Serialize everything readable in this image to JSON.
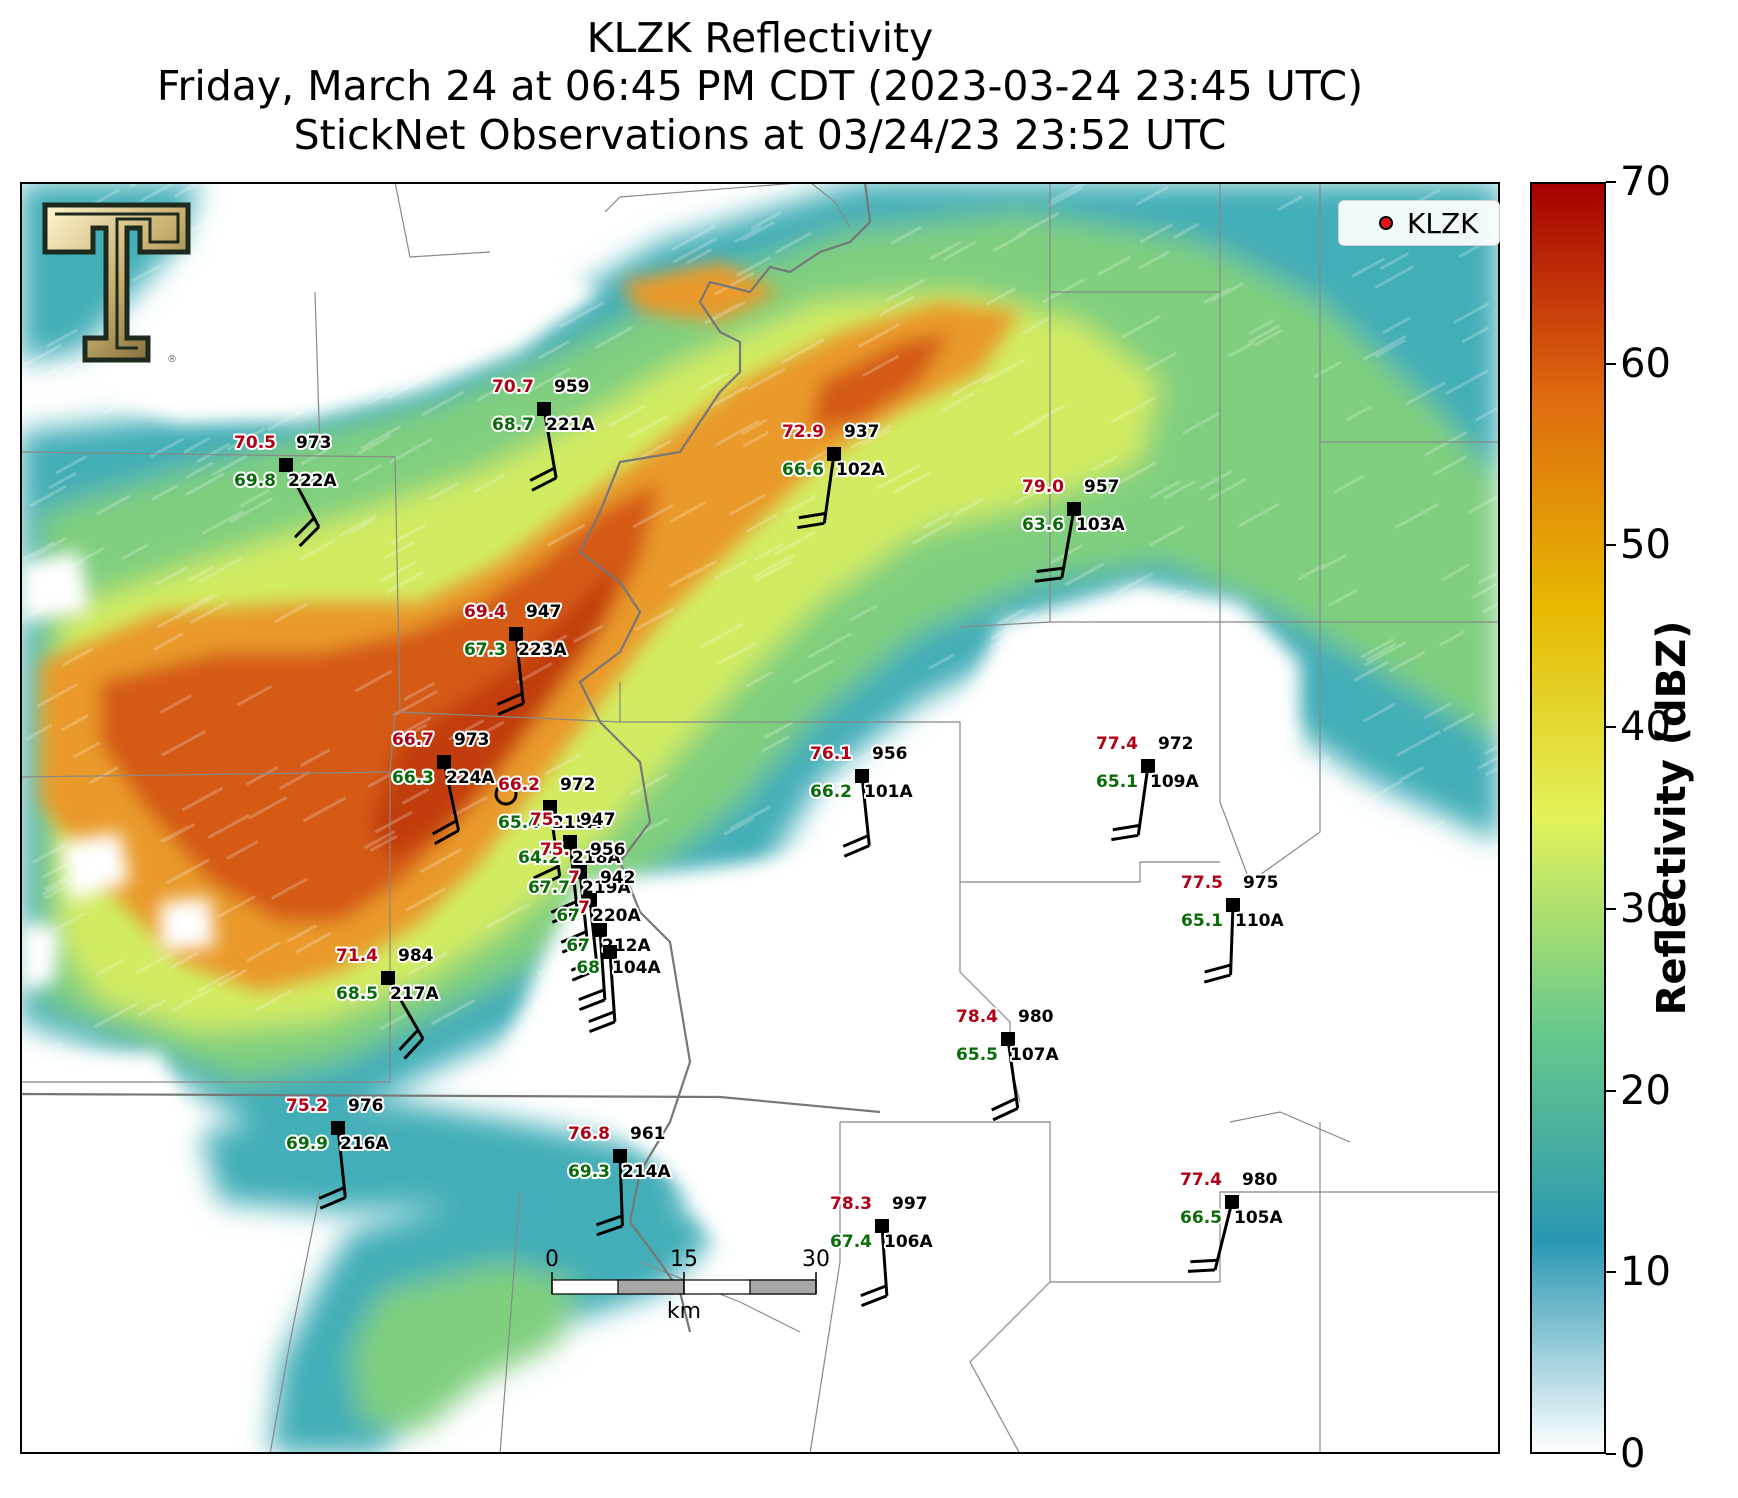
{
  "title": {
    "line1": "KLZK Reflectivity",
    "line2": "Friday, March 24 at 06:45 PM CDT (2023-03-24 23:45 UTC)",
    "line3": "StickNet Observations at 03/24/23 23:52 UTC"
  },
  "legend": {
    "label": "KLZK",
    "color": "#e8141a"
  },
  "colorbar": {
    "label": "Reflectivity (dBZ)",
    "min": 0,
    "max": 70,
    "ticks": [
      "0",
      "10",
      "20",
      "30",
      "40",
      "50",
      "60",
      "70"
    ],
    "colors": [
      "#ffffff",
      "#2a97b2",
      "#68c98a",
      "#e2f25a",
      "#e6b800",
      "#de6a10",
      "#a50000"
    ]
  },
  "scale_bar": {
    "ticks": [
      "0",
      "15",
      "30"
    ],
    "unit": "km"
  },
  "stations": [
    {
      "id": "221A",
      "temp": "70.7",
      "dew": "68.7",
      "pres": "959"
    },
    {
      "id": "222A",
      "temp": "70.5",
      "dew": "69.8",
      "pres": "973"
    },
    {
      "id": "102A",
      "temp": "72.9",
      "dew": "66.6",
      "pres": "937"
    },
    {
      "id": "103A",
      "temp": "79.0",
      "dew": "63.6",
      "pres": "957"
    },
    {
      "id": "223A",
      "temp": "69.4",
      "dew": "67.3",
      "pres": "947"
    },
    {
      "id": "224A",
      "temp": "66.7",
      "dew": "66.3",
      "pres": "973"
    },
    {
      "id": "215A",
      "temp": "66.2",
      "dew": "65.4",
      "pres": "972"
    },
    {
      "id": "101A",
      "temp": "76.1",
      "dew": "66.2",
      "pres": "956"
    },
    {
      "id": "109A",
      "temp": "77.4",
      "dew": "65.1",
      "pres": "972"
    },
    {
      "id": "218A",
      "temp": "75.",
      "dew": "64.2",
      "pres": "947"
    },
    {
      "id": "219A",
      "temp": "75.",
      "dew": "67.7",
      "pres": "956"
    },
    {
      "id": "220A",
      "temp": "7",
      "dew": "67",
      "pres": "942"
    },
    {
      "id": "110A",
      "temp": "77.5",
      "dew": "65.1",
      "pres": "975"
    },
    {
      "id": "212A",
      "temp": "7",
      "dew": "67",
      "pres": ""
    },
    {
      "id": "104A",
      "temp": "",
      "dew": "68",
      "pres": ""
    },
    {
      "id": "217A",
      "temp": "71.4",
      "dew": "68.5",
      "pres": "984"
    },
    {
      "id": "107A",
      "temp": "78.4",
      "dew": "65.5",
      "pres": "980"
    },
    {
      "id": "216A",
      "temp": "75.2",
      "dew": "69.9",
      "pres": "976"
    },
    {
      "id": "214A",
      "temp": "76.8",
      "dew": "69.3",
      "pres": "961"
    },
    {
      "id": "106A",
      "temp": "78.3",
      "dew": "67.4",
      "pres": "997"
    },
    {
      "id": "105A",
      "temp": "77.4",
      "dew": "66.5",
      "pres": "980"
    }
  ]
}
